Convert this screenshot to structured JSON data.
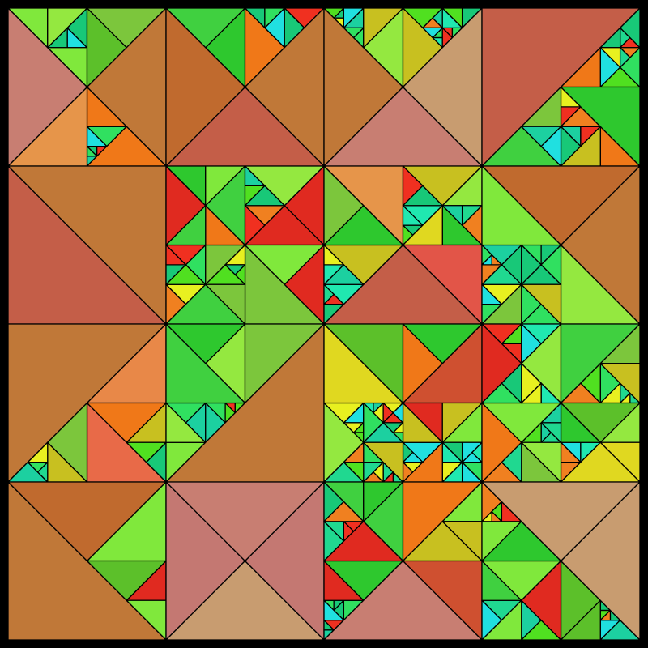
{
  "artwork": {
    "border_color": "#000000",
    "palette": {
      "large": [
        "#c47872",
        "#c87e72",
        "#c45e48",
        "#c89c70",
        "#c06a2e",
        "#c07838"
      ],
      "medium": [
        "#e25548",
        "#e86a48",
        "#e88848",
        "#e6954a",
        "#e46a2a",
        "#e0801e",
        "#cf5030"
      ],
      "small": [
        "#7cc63c",
        "#5cc02a",
        "#40d040",
        "#2ec82e",
        "#80e83c",
        "#94e840",
        "#e0d820",
        "#c8c020",
        "#e02a20",
        "#f07818"
      ],
      "tiny": [
        "#20d890",
        "#1cd0a0",
        "#20e8b0",
        "#18c878",
        "#30e060",
        "#20e0e0",
        "#50e020",
        "#e8f020",
        "#f03020",
        "#f08020"
      ]
    }
  }
}
